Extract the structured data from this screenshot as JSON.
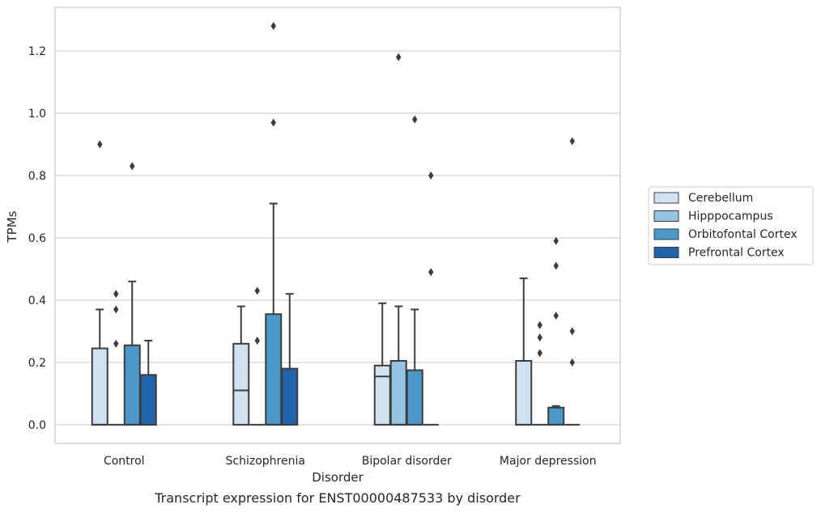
{
  "chart_data": {
    "type": "box",
    "ylabel": "TPMs",
    "xlabel": "Disorder",
    "caption": "Transcript expression for ENST00000487533 by disorder",
    "ylim": [
      -0.06,
      1.34
    ],
    "yticks": [
      0.0,
      0.2,
      0.4,
      0.6,
      0.8,
      1.0,
      1.2
    ],
    "ytick_labels": [
      "0.0",
      "0.2",
      "0.4",
      "0.6",
      "0.8",
      "1.0",
      "1.2"
    ],
    "grid": "horizontal",
    "legend_position": "right",
    "categories": [
      "Control",
      "Schizophrenia",
      "Bipolar disorder",
      "Major depression"
    ],
    "series": [
      {
        "name": "Cerebellum",
        "color": "#d0e1f2",
        "boxes": [
          {
            "q1": 0.0,
            "median": 0.0,
            "q3": 0.245,
            "whisker_low": 0.0,
            "whisker_high": 0.37,
            "outliers": [
              0.9
            ]
          },
          {
            "q1": 0.0,
            "median": 0.11,
            "q3": 0.26,
            "whisker_low": 0.0,
            "whisker_high": 0.38,
            "outliers": []
          },
          {
            "q1": 0.0,
            "median": 0.155,
            "q3": 0.19,
            "whisker_low": 0.0,
            "whisker_high": 0.39,
            "outliers": []
          },
          {
            "q1": 0.0,
            "median": 0.0,
            "q3": 0.205,
            "whisker_low": 0.0,
            "whisker_high": 0.47,
            "outliers": []
          }
        ]
      },
      {
        "name": "Hipppocampus",
        "color": "#94c4df",
        "boxes": [
          {
            "q1": 0.0,
            "median": 0.0,
            "q3": 0.0,
            "whisker_low": 0.0,
            "whisker_high": 0.0,
            "outliers": [
              0.26,
              0.37,
              0.42
            ]
          },
          {
            "q1": 0.0,
            "median": 0.0,
            "q3": 0.0,
            "whisker_low": 0.0,
            "whisker_high": 0.0,
            "outliers": [
              0.27,
              0.43
            ]
          },
          {
            "q1": 0.0,
            "median": 0.0,
            "q3": 0.205,
            "whisker_low": 0.0,
            "whisker_high": 0.38,
            "outliers": [
              1.18
            ]
          },
          {
            "q1": 0.0,
            "median": 0.0,
            "q3": 0.0,
            "whisker_low": 0.0,
            "whisker_high": 0.0,
            "outliers": [
              0.23,
              0.28,
              0.32
            ]
          }
        ]
      },
      {
        "name": "Orbitofontal Cortex",
        "color": "#4a98c9",
        "boxes": [
          {
            "q1": 0.0,
            "median": 0.0,
            "q3": 0.255,
            "whisker_low": 0.0,
            "whisker_high": 0.46,
            "outliers": [
              0.83
            ]
          },
          {
            "q1": 0.0,
            "median": 0.0,
            "q3": 0.355,
            "whisker_low": 0.0,
            "whisker_high": 0.71,
            "outliers": [
              0.97,
              1.28
            ]
          },
          {
            "q1": 0.0,
            "median": 0.0,
            "q3": 0.175,
            "whisker_low": 0.0,
            "whisker_high": 0.37,
            "outliers": [
              0.98
            ]
          },
          {
            "q1": 0.0,
            "median": 0.0,
            "q3": 0.055,
            "whisker_low": 0.0,
            "whisker_high": 0.06,
            "outliers": [
              0.35,
              0.51,
              0.59
            ]
          }
        ]
      },
      {
        "name": "Prefrontal Cortex",
        "color": "#2164ab",
        "boxes": [
          {
            "q1": 0.0,
            "median": 0.0,
            "q3": 0.16,
            "whisker_low": 0.0,
            "whisker_high": 0.27,
            "outliers": []
          },
          {
            "q1": 0.0,
            "median": 0.0,
            "q3": 0.18,
            "whisker_low": 0.0,
            "whisker_high": 0.42,
            "outliers": []
          },
          {
            "q1": 0.0,
            "median": 0.0,
            "q3": 0.0,
            "whisker_low": 0.0,
            "whisker_high": 0.0,
            "outliers": [
              0.49,
              0.8
            ]
          },
          {
            "q1": 0.0,
            "median": 0.0,
            "q3": 0.0,
            "whisker_low": 0.0,
            "whisker_high": 0.0,
            "outliers": [
              0.2,
              0.3,
              0.91
            ]
          }
        ]
      }
    ]
  }
}
